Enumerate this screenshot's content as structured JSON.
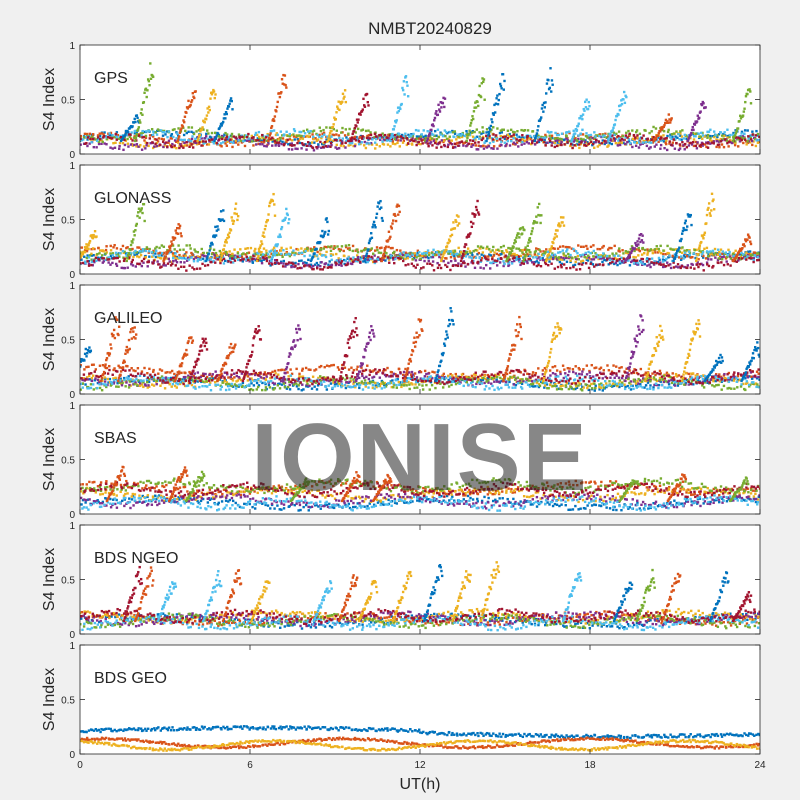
{
  "chart_data": {
    "type": "scatter",
    "title": "NMBT20240829",
    "xlabel": "UT(h)",
    "ylabel": "S4 Index",
    "xlim": [
      0,
      24
    ],
    "xticks": [
      "0",
      "6",
      "12",
      "18",
      "24"
    ],
    "ylim": [
      0,
      1
    ],
    "yticks": [
      "0",
      "0.5",
      "1"
    ],
    "grid": false,
    "watermark": "IONISE",
    "series_colors": [
      "#0072bd",
      "#d95319",
      "#edb120",
      "#7e2f8e",
      "#77ac30",
      "#4dbeee",
      "#a2142f"
    ],
    "panels": [
      {
        "name": "GPS",
        "baseline": [
          0.15,
          0.13,
          0.12,
          0.1,
          0.18,
          0.16,
          0.12
        ],
        "spikes": [
          [
            2.0,
            0.35,
            0
          ],
          [
            2.5,
            0.8,
            4
          ],
          [
            4.0,
            0.62,
            1
          ],
          [
            4.7,
            0.6,
            2
          ],
          [
            5.3,
            0.5,
            0
          ],
          [
            7.2,
            0.75,
            1
          ],
          [
            9.3,
            0.6,
            2
          ],
          [
            10.1,
            0.55,
            6
          ],
          [
            11.5,
            0.72,
            5
          ],
          [
            12.8,
            0.55,
            3
          ],
          [
            14.2,
            0.7,
            4
          ],
          [
            14.9,
            0.72,
            0
          ],
          [
            16.6,
            0.75,
            0
          ],
          [
            17.9,
            0.5,
            5
          ],
          [
            19.2,
            0.55,
            5
          ],
          [
            20.8,
            0.35,
            1
          ],
          [
            22.0,
            0.48,
            3
          ],
          [
            23.6,
            0.58,
            4
          ]
        ]
      },
      {
        "name": "GLONASS",
        "baseline": [
          0.14,
          0.2,
          0.18,
          0.12,
          0.2,
          0.16,
          0.1
        ],
        "spikes": [
          [
            0.5,
            0.4,
            2
          ],
          [
            2.2,
            0.68,
            4
          ],
          [
            3.5,
            0.45,
            1
          ],
          [
            5.0,
            0.6,
            0
          ],
          [
            5.5,
            0.62,
            2
          ],
          [
            6.8,
            0.72,
            2
          ],
          [
            7.3,
            0.6,
            5
          ],
          [
            8.7,
            0.48,
            0
          ],
          [
            10.6,
            0.68,
            0
          ],
          [
            11.2,
            0.65,
            1
          ],
          [
            13.3,
            0.55,
            2
          ],
          [
            14.0,
            0.66,
            6
          ],
          [
            15.6,
            0.45,
            4
          ],
          [
            16.2,
            0.62,
            4
          ],
          [
            17.0,
            0.55,
            2
          ],
          [
            19.8,
            0.36,
            3
          ],
          [
            21.5,
            0.55,
            0
          ],
          [
            22.3,
            0.7,
            2
          ],
          [
            23.6,
            0.35,
            1
          ]
        ]
      },
      {
        "name": "GALILEO",
        "baseline": [
          0.1,
          0.2,
          0.12,
          0.14,
          0.1,
          0.1,
          0.16
        ],
        "spikes": [
          [
            0.3,
            0.45,
            0
          ],
          [
            1.3,
            0.7,
            1
          ],
          [
            1.9,
            0.65,
            1
          ],
          [
            3.9,
            0.52,
            1
          ],
          [
            4.4,
            0.55,
            6
          ],
          [
            5.4,
            0.48,
            1
          ],
          [
            6.3,
            0.65,
            6
          ],
          [
            7.7,
            0.62,
            3
          ],
          [
            9.7,
            0.7,
            6
          ],
          [
            10.3,
            0.6,
            3
          ],
          [
            12.0,
            0.68,
            1
          ],
          [
            13.1,
            0.75,
            0
          ],
          [
            15.5,
            0.66,
            1
          ],
          [
            16.9,
            0.72,
            2
          ],
          [
            19.8,
            0.72,
            3
          ],
          [
            20.5,
            0.62,
            2
          ],
          [
            21.8,
            0.75,
            2
          ],
          [
            22.6,
            0.35,
            0
          ],
          [
            23.9,
            0.45,
            0
          ]
        ]
      },
      {
        "name": "SBAS",
        "baseline": [
          0.1,
          0.24,
          0.18,
          0.12,
          0.26,
          0.1,
          0.22
        ],
        "spikes": [
          [
            1.5,
            0.42,
            1
          ],
          [
            3.7,
            0.45,
            1
          ],
          [
            4.3,
            0.38,
            4
          ],
          [
            8.0,
            0.32,
            4
          ],
          [
            9.8,
            0.38,
            1
          ],
          [
            10.9,
            0.36,
            1
          ],
          [
            21.3,
            0.36,
            1
          ],
          [
            19.6,
            0.34,
            4
          ],
          [
            23.5,
            0.32,
            4
          ]
        ]
      },
      {
        "name": "BDS NGEO",
        "baseline": [
          0.12,
          0.14,
          0.16,
          0.14,
          0.12,
          0.1,
          0.16
        ],
        "spikes": [
          [
            2.1,
            0.6,
            6
          ],
          [
            2.5,
            0.58,
            1
          ],
          [
            3.3,
            0.5,
            5
          ],
          [
            4.9,
            0.55,
            5
          ],
          [
            5.6,
            0.6,
            1
          ],
          [
            6.6,
            0.5,
            2
          ],
          [
            8.8,
            0.48,
            5
          ],
          [
            9.7,
            0.55,
            1
          ],
          [
            10.4,
            0.5,
            2
          ],
          [
            11.6,
            0.58,
            2
          ],
          [
            12.7,
            0.62,
            0
          ],
          [
            13.7,
            0.62,
            2
          ],
          [
            14.7,
            0.68,
            2
          ],
          [
            17.6,
            0.62,
            5
          ],
          [
            19.4,
            0.5,
            0
          ],
          [
            20.2,
            0.55,
            4
          ],
          [
            21.1,
            0.58,
            1
          ],
          [
            22.8,
            0.55,
            0
          ],
          [
            23.6,
            0.38,
            6
          ]
        ]
      },
      {
        "name": "BDS GEO",
        "baseline": [
          0.21,
          0.1,
          0.08
        ],
        "spikes": []
      }
    ]
  }
}
